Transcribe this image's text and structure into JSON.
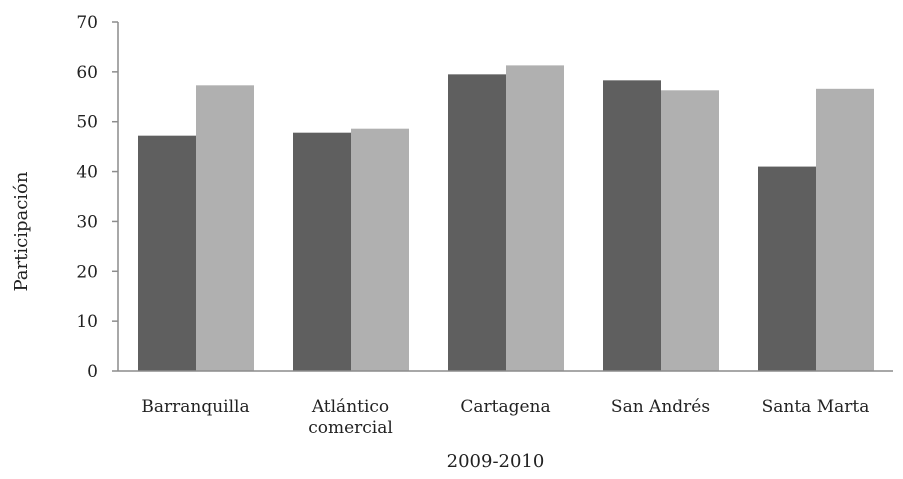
{
  "chart_data": {
    "type": "bar",
    "title": "",
    "xlabel": "2009-2010",
    "ylabel": "Participación",
    "ylim": [
      0,
      70
    ],
    "yticks": [
      0,
      10,
      20,
      30,
      40,
      50,
      60,
      70
    ],
    "grid": false,
    "legend": "none",
    "categories": [
      [
        "Barranquilla"
      ],
      [
        "Atlántico",
        "comercial"
      ],
      [
        "Cartagena"
      ],
      [
        "San Andrés"
      ],
      [
        "Santa Marta"
      ]
    ],
    "series": [
      {
        "color": "#5f5f5f",
        "values": [
          47.2,
          47.8,
          59.5,
          58.3,
          41.0
        ]
      },
      {
        "color": "#b0b0b0",
        "values": [
          57.3,
          48.6,
          61.3,
          56.3,
          56.6
        ]
      }
    ]
  }
}
